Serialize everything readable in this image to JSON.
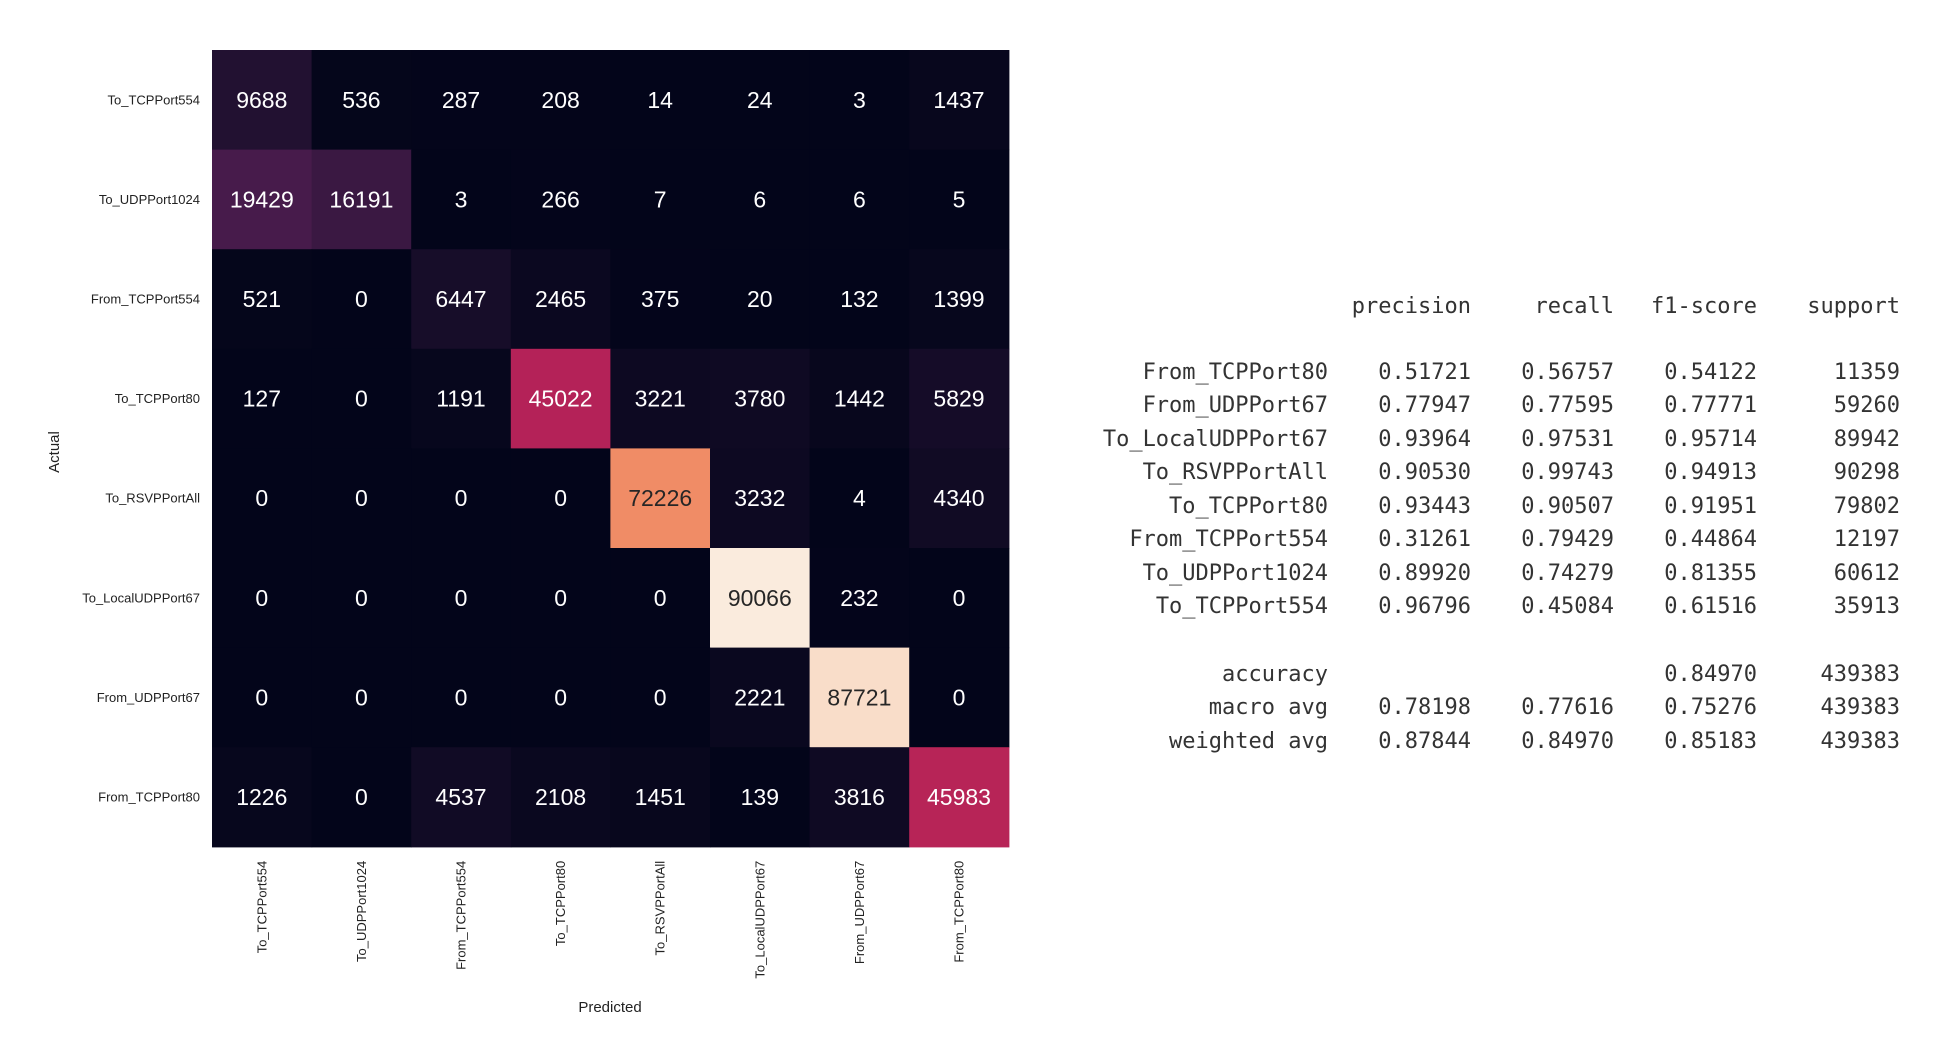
{
  "chart_data": [
    {
      "type": "heatmap",
      "title": "",
      "xlabel": "Predicted",
      "ylabel": "Actual",
      "rows": [
        "To_TCPPort554",
        "To_UDPPort1024",
        "From_TCPPort554",
        "To_TCPPort80",
        "To_RSVPPortAll",
        "To_LocalUDPPort67",
        "From_UDPPort67",
        "From_TCPPort80"
      ],
      "columns": [
        "To_TCPPort554",
        "To_UDPPort1024",
        "From_TCPPort554",
        "To_TCPPort80",
        "To_RSVPPortAll",
        "To_LocalUDPPort67",
        "From_UDPPort67",
        "From_TCPPort80"
      ],
      "values": [
        [
          9688,
          536,
          287,
          208,
          14,
          24,
          3,
          1437
        ],
        [
          19429,
          16191,
          3,
          266,
          7,
          6,
          6,
          5
        ],
        [
          521,
          0,
          6447,
          2465,
          375,
          20,
          132,
          1399
        ],
        [
          127,
          0,
          1191,
          45022,
          3221,
          3780,
          1442,
          5829
        ],
        [
          0,
          0,
          0,
          0,
          72226,
          3232,
          4,
          4340
        ],
        [
          0,
          0,
          0,
          0,
          0,
          90066,
          232,
          0
        ],
        [
          0,
          0,
          0,
          0,
          0,
          2221,
          87721,
          0
        ],
        [
          1226,
          0,
          4537,
          2108,
          1451,
          139,
          3816,
          45983
        ]
      ],
      "colormap": "rocket",
      "colorbar": false,
      "grid": false
    },
    {
      "type": "table",
      "title": "",
      "columns": [
        "precision",
        "recall",
        "f1-score",
        "support"
      ],
      "rows": [
        {
          "label": "From_TCPPort80",
          "values": [
            "0.51721",
            "0.56757",
            "0.54122",
            "11359"
          ]
        },
        {
          "label": "From_UDPPort67",
          "values": [
            "0.77947",
            "0.77595",
            "0.77771",
            "59260"
          ]
        },
        {
          "label": "To_LocalUDPPort67",
          "values": [
            "0.93964",
            "0.97531",
            "0.95714",
            "89942"
          ]
        },
        {
          "label": "To_RSVPPortAll",
          "values": [
            "0.90530",
            "0.99743",
            "0.94913",
            "90298"
          ]
        },
        {
          "label": "To_TCPPort80",
          "values": [
            "0.93443",
            "0.90507",
            "0.91951",
            "79802"
          ]
        },
        {
          "label": "From_TCPPort554",
          "values": [
            "0.31261",
            "0.79429",
            "0.44864",
            "12197"
          ]
        },
        {
          "label": "To_UDPPort1024",
          "values": [
            "0.89920",
            "0.74279",
            "0.81355",
            "60612"
          ]
        },
        {
          "label": "To_TCPPort554",
          "values": [
            "0.96796",
            "0.45084",
            "0.61516",
            "35913"
          ]
        }
      ],
      "summary": [
        {
          "label": "accuracy",
          "values": [
            "",
            "",
            "0.84970",
            "439383"
          ]
        },
        {
          "label": "macro avg",
          "values": [
            "0.78198",
            "0.77616",
            "0.75276",
            "439383"
          ]
        },
        {
          "label": "weighted avg",
          "values": [
            "0.87844",
            "0.84970",
            "0.85183",
            "439383"
          ]
        }
      ]
    }
  ]
}
